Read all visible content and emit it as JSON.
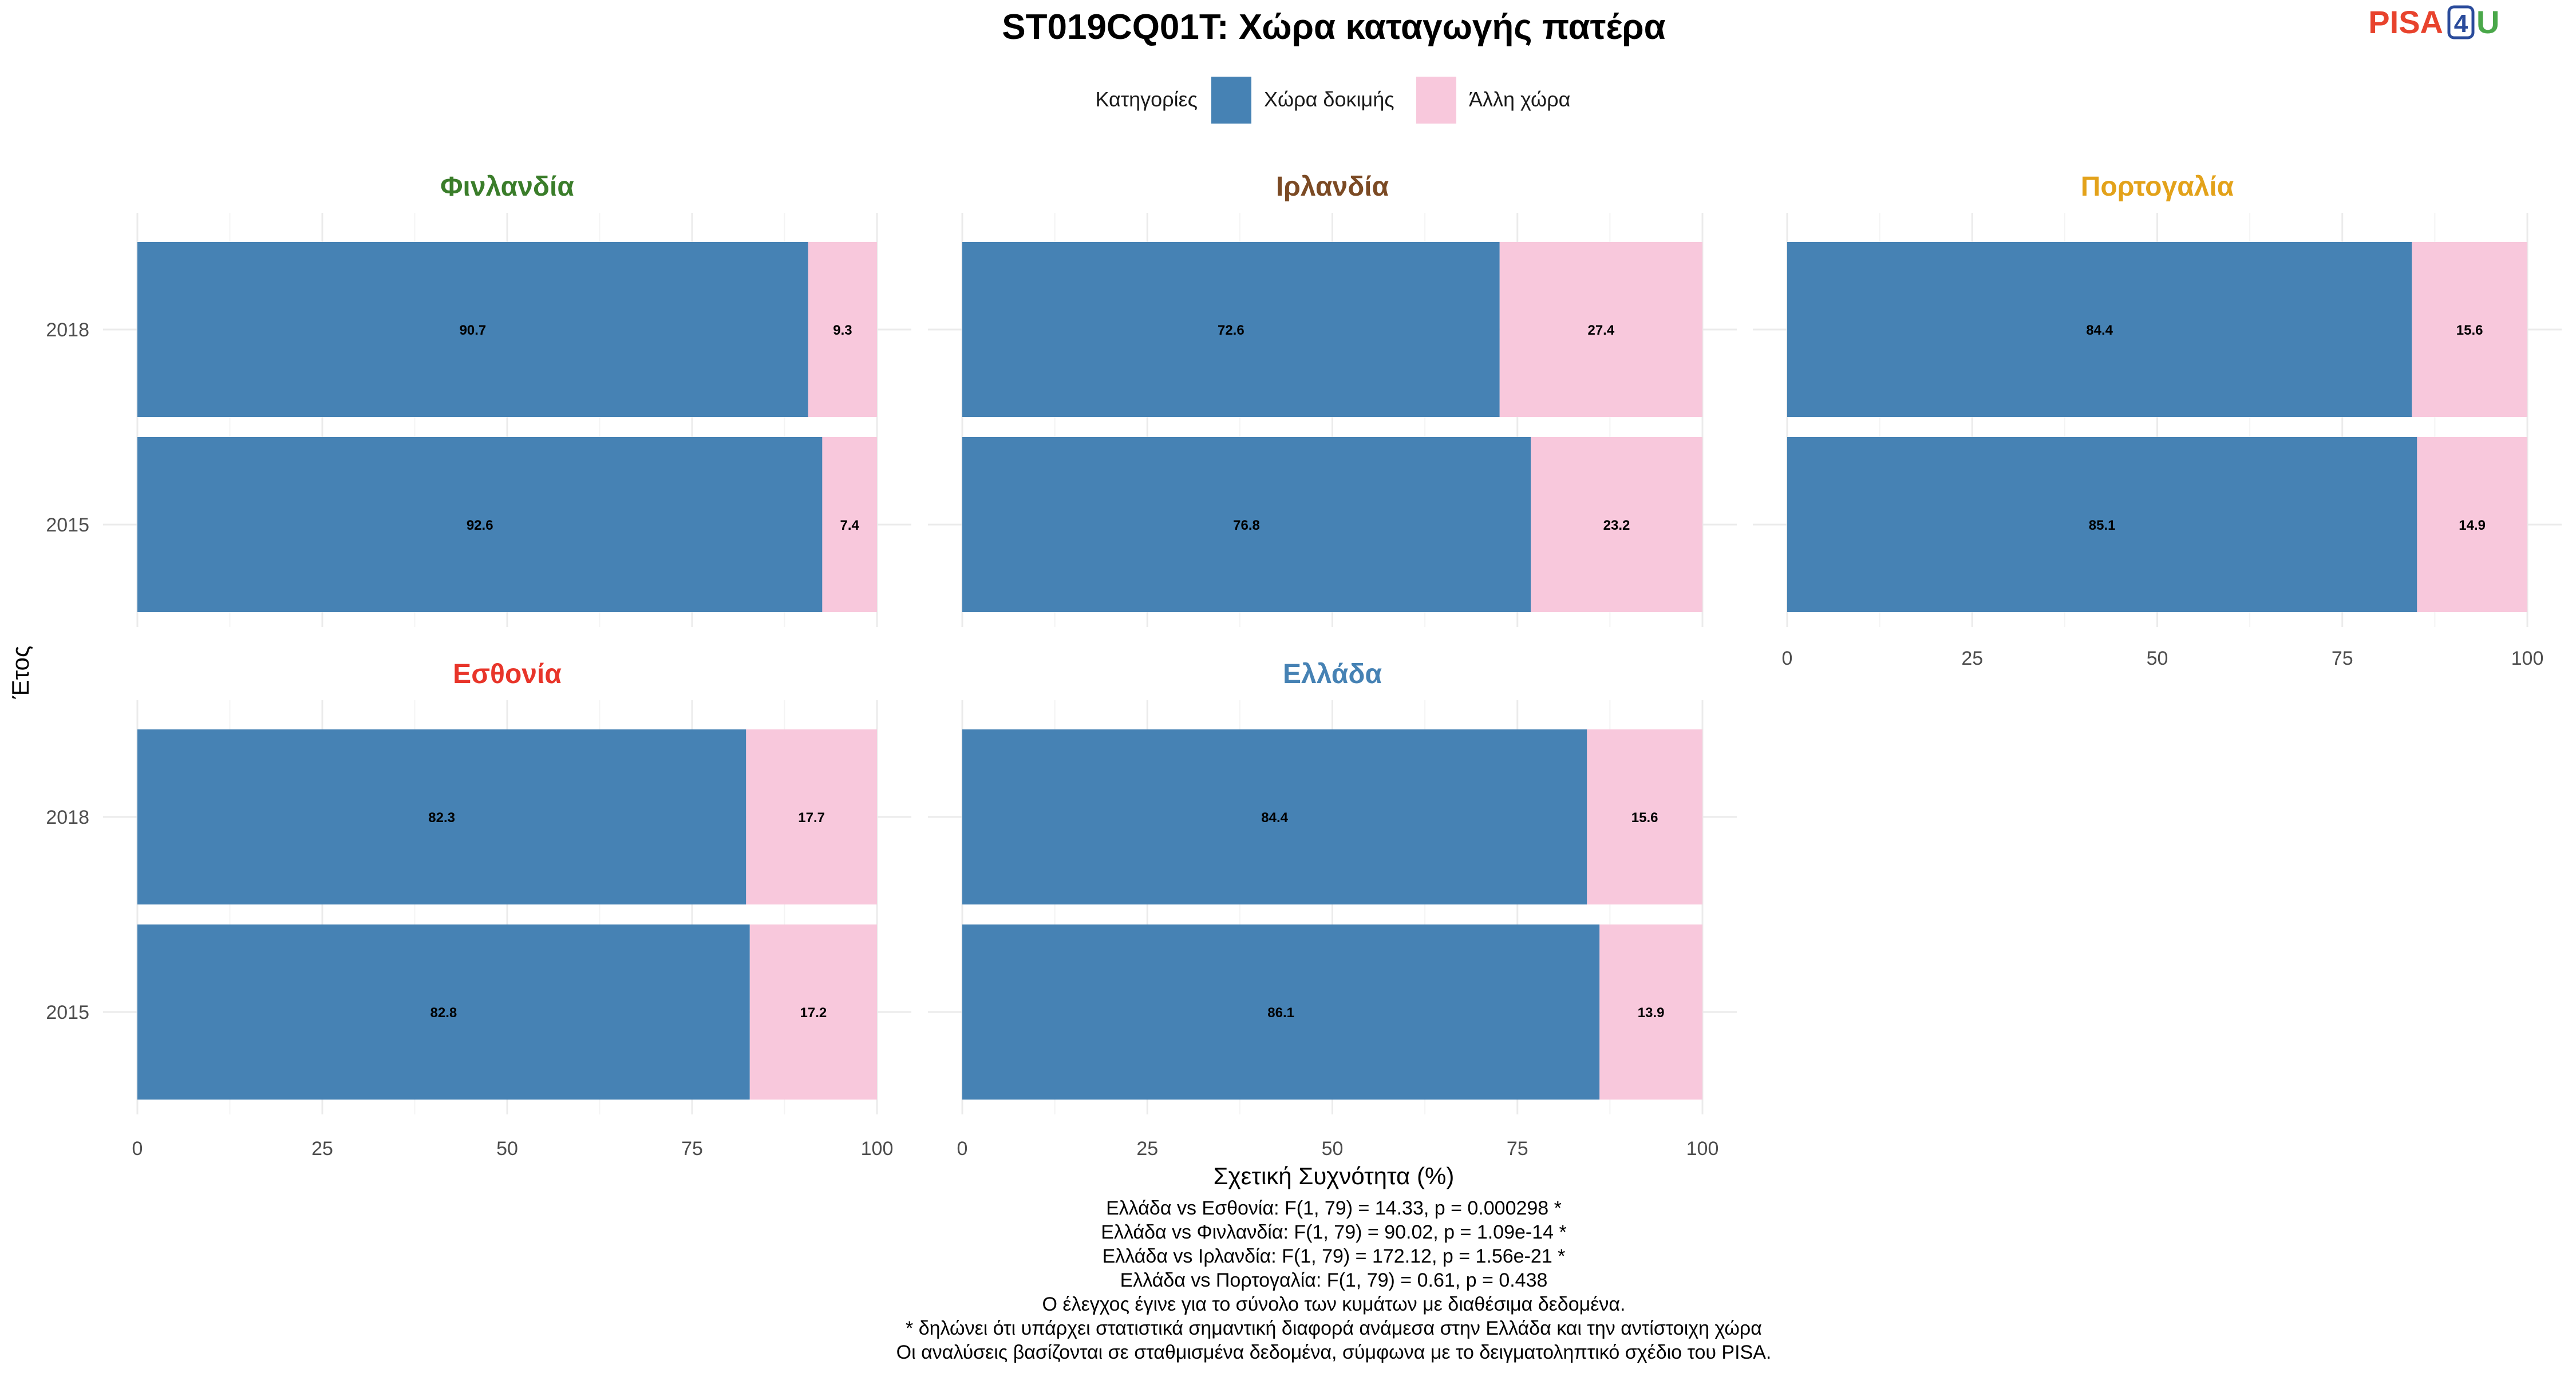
{
  "logo": {
    "part1": "PISA",
    "part2": "4",
    "part3": "U",
    "color1": "#e8432d",
    "color2": "#2a4b9b",
    "color3": "#4aa84a"
  },
  "chart_data": {
    "type": "bar",
    "orientation": "horizontal",
    "stacked": true,
    "title": "ST019CQ01T: Χώρα καταγωγής πατέρα",
    "xlabel": "Σχετική Συχνότητα (%)",
    "ylabel": "Έτος",
    "xlim": [
      0,
      100
    ],
    "xticks": [
      "0",
      "25",
      "50",
      "75",
      "100"
    ],
    "categories": [
      "2018",
      "2015"
    ],
    "legend": {
      "title": "Κατηγορίες",
      "position": "top",
      "items": [
        {
          "label": "Χώρα δοκιμής",
          "color": "#4682b4"
        },
        {
          "label": "Άλλη χώρα",
          "color": "#f8c8dc"
        }
      ]
    },
    "grid": true,
    "panels": [
      {
        "name": "Φινλανδία",
        "color": "#3a7d2a",
        "series": [
          {
            "name": "Χώρα δοκιμής",
            "values": [
              90.7,
              92.6
            ]
          },
          {
            "name": "Άλλη χώρα",
            "values": [
              9.3,
              7.4
            ]
          }
        ]
      },
      {
        "name": "Ιρλανδία",
        "color": "#7b4a24",
        "series": [
          {
            "name": "Χώρα δοκιμής",
            "values": [
              72.6,
              76.8
            ]
          },
          {
            "name": "Άλλη χώρα",
            "values": [
              27.4,
              23.2
            ]
          }
        ]
      },
      {
        "name": "Πορτογαλία",
        "color": "#e3a21a",
        "series": [
          {
            "name": "Χώρα δοκιμής",
            "values": [
              84.4,
              85.1
            ]
          },
          {
            "name": "Άλλη χώρα",
            "values": [
              15.6,
              14.9
            ]
          }
        ]
      },
      {
        "name": "Εσθονία",
        "color": "#e8352a",
        "series": [
          {
            "name": "Χώρα δοκιμής",
            "values": [
              82.3,
              82.8
            ]
          },
          {
            "name": "Άλλη χώρα",
            "values": [
              17.7,
              17.2
            ]
          }
        ]
      },
      {
        "name": "Ελλάδα",
        "color": "#4682b4",
        "series": [
          {
            "name": "Χώρα δοκιμής",
            "values": [
              84.4,
              86.1
            ]
          },
          {
            "name": "Άλλη χώρα",
            "values": [
              15.6,
              13.9
            ]
          }
        ]
      }
    ],
    "notes": [
      "Ελλάδα vs Εσθονία: F(1, 79) = 14.33, p = 0.000298 *",
      "Ελλάδα vs Φινλανδία: F(1, 79) = 90.02, p = 1.09e-14 *",
      "Ελλάδα vs Ιρλανδία: F(1, 79) = 172.12, p = 1.56e-21 *",
      "Ελλάδα vs Πορτογαλία: F(1, 79) = 0.61, p = 0.438",
      "Ο έλεγχος έγινε για το σύνολο των κυμάτων με διαθέσιμα δεδομένα.",
      "* δηλώνει ότι υπάρχει στατιστικά σημαντική διαφορά ανάμεσα στην Ελλάδα και την αντίστοιχη χώρα",
      "Οι αναλύσεις βασίζονται σε σταθμισμένα δεδομένα, σύμφωνα με το δειγματοληπτικό σχέδιο του PISA."
    ]
  }
}
